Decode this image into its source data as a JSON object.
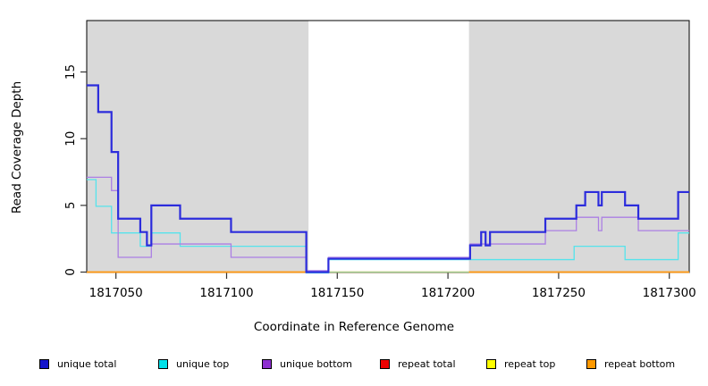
{
  "chart_data": {
    "type": "line",
    "subtype": "step-coverage",
    "title": "",
    "xlabel": "Coordinate in Reference Genome",
    "ylabel": "Read Coverage Depth",
    "xlim": [
      1817036.8,
      1817309
    ],
    "ylim": [
      0,
      18.9
    ],
    "grid": false,
    "x_ticks": [
      1817050,
      1817100,
      1817150,
      1817200,
      1817250,
      1817300
    ],
    "x_tick_labels": [
      "1817050",
      "1817100",
      "1817150",
      "1817200",
      "1817250",
      "1817300"
    ],
    "y_ticks": [
      0,
      5,
      10,
      15
    ],
    "y_tick_labels": [
      "0",
      "5",
      "10",
      "15"
    ],
    "shaded_regions": [
      {
        "from": 1817036.8,
        "to": 1817137,
        "color": "#d9d9d9"
      },
      {
        "from": 1817209.5,
        "to": 1817309,
        "color": "#d9d9d9"
      }
    ],
    "series": [
      {
        "name": "repeat total",
        "color": "#ee1111",
        "in_legend": true,
        "steps": [
          [
            1817036.8,
            1817309,
            0
          ]
        ]
      },
      {
        "name": "repeat top",
        "color": "#ffff22",
        "in_legend": true,
        "steps": [
          [
            1817036.8,
            1817309,
            0
          ]
        ]
      },
      {
        "name": "unique top",
        "color": "#55e3ec",
        "in_legend": true,
        "steps": [
          [
            1817036.8,
            1817041,
            7
          ],
          [
            1817041,
            1817048,
            5
          ],
          [
            1817048,
            1817061,
            3
          ],
          [
            1817061,
            1817066,
            2
          ],
          [
            1817066,
            1817079,
            3
          ],
          [
            1817079,
            1817136,
            2
          ],
          [
            1817136,
            1817146,
            0
          ],
          [
            1817146,
            1817257,
            1
          ],
          [
            1817257,
            1817280,
            2
          ],
          [
            1817280,
            1817304,
            1
          ],
          [
            1817304,
            1817309,
            3
          ]
        ]
      },
      {
        "name": "unique bottom",
        "color": "#ab7fe4",
        "in_legend": true,
        "steps": [
          [
            1817036.8,
            1817048,
            7
          ],
          [
            1817048,
            1817051,
            6
          ],
          [
            1817051,
            1817066,
            1
          ],
          [
            1817066,
            1817102,
            2
          ],
          [
            1817102,
            1817136,
            1
          ],
          [
            1817136,
            1817146,
            0
          ],
          [
            1817146,
            1817210,
            1
          ],
          [
            1817210,
            1817244,
            2
          ],
          [
            1817244,
            1817258,
            3
          ],
          [
            1817258,
            1817268,
            4
          ],
          [
            1817268,
            1817269.5,
            3
          ],
          [
            1817269.5,
            1817286,
            4
          ],
          [
            1817286,
            1817309,
            3
          ]
        ]
      },
      {
        "name": "",
        "role": "gap-baseline",
        "color": "#9ed49a",
        "in_legend": false,
        "steps": [
          [
            1817137,
            1817209.5,
            0
          ]
        ]
      },
      {
        "name": "repeat bottom",
        "color": "#ff9913",
        "in_legend": true,
        "steps": [
          [
            1817036.8,
            1817137,
            0
          ],
          [
            1817209.5,
            1817309,
            0
          ]
        ]
      },
      {
        "name": "unique total",
        "color": "#2c2cdc",
        "in_legend": true,
        "steps": [
          [
            1817036.8,
            1817042,
            14
          ],
          [
            1817042,
            1817048,
            12
          ],
          [
            1817048,
            1817051,
            9
          ],
          [
            1817051,
            1817061,
            4
          ],
          [
            1817061,
            1817064,
            3
          ],
          [
            1817064,
            1817066,
            2
          ],
          [
            1817066,
            1817079,
            5
          ],
          [
            1817079,
            1817102,
            4
          ],
          [
            1817102,
            1817136,
            3
          ],
          [
            1817136,
            1817146,
            0
          ],
          [
            1817146,
            1817210,
            1
          ],
          [
            1817210,
            1817215,
            2
          ],
          [
            1817215,
            1817217,
            3
          ],
          [
            1817217,
            1817219,
            2
          ],
          [
            1817219,
            1817244,
            3
          ],
          [
            1817244,
            1817258,
            4
          ],
          [
            1817258,
            1817262,
            5
          ],
          [
            1817262,
            1817268,
            6
          ],
          [
            1817268,
            1817269.5,
            5
          ],
          [
            1817269.5,
            1817280,
            6
          ],
          [
            1817280,
            1817286,
            5
          ],
          [
            1817286,
            1817304,
            4
          ],
          [
            1817304,
            1817309,
            6
          ]
        ]
      }
    ],
    "legend_position": "bottom"
  },
  "legend": {
    "items": [
      {
        "label": "unique total",
        "color": "#1414cc"
      },
      {
        "label": "unique top",
        "color": "#00e0e8"
      },
      {
        "label": "unique bottom",
        "color": "#8e2fd0"
      },
      {
        "label": "repeat total",
        "color": "#ee0000"
      },
      {
        "label": "repeat top",
        "color": "#ffff00"
      },
      {
        "label": "repeat bottom",
        "color": "#ff9900"
      }
    ]
  }
}
